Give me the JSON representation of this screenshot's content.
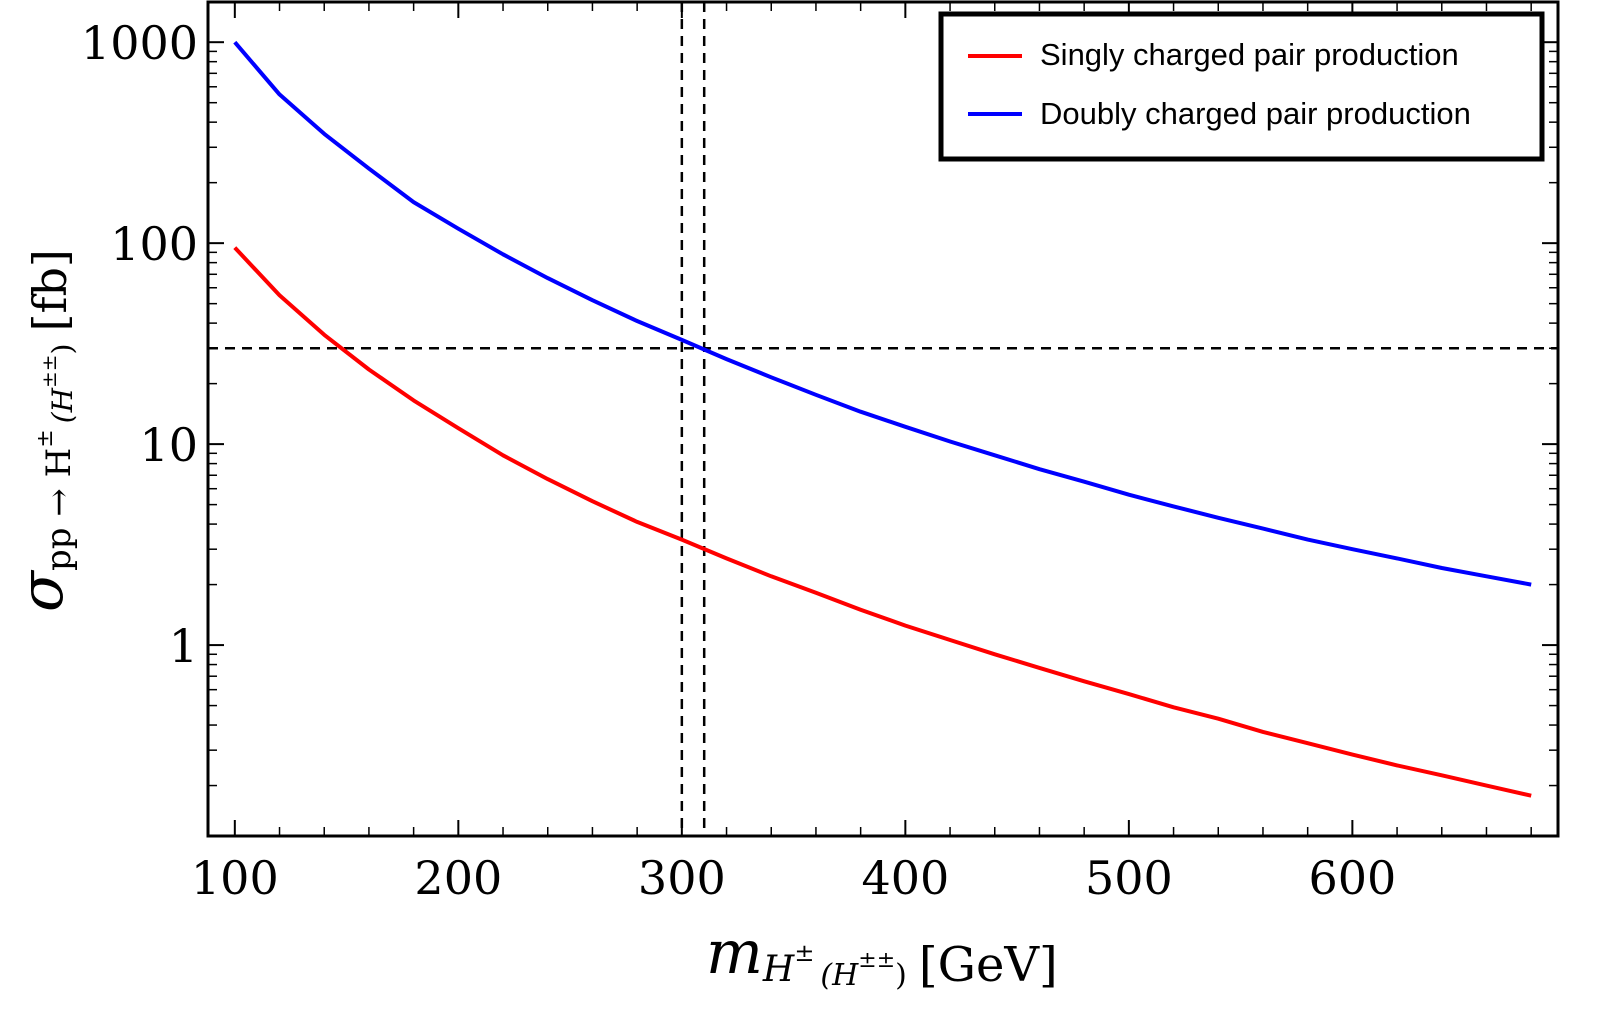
{
  "chart_data": {
    "type": "line",
    "title": "",
    "xlabel": {
      "symbol": "m",
      "sub1": "H",
      "sup1": "±",
      "sub2": "(H",
      "sup2": "±±",
      "sub3": ")",
      "unit": "[GeV]"
    },
    "ylabel": {
      "symbol": "σ",
      "sub1": "pp → H",
      "sup1": "±",
      "sub2": "(H",
      "sup2": "±±",
      "sub3": ")",
      "unit": "[fb]"
    },
    "xlim": [
      88,
      692
    ],
    "ylim_log10": [
      -0.95,
      3.2
    ],
    "yscale": "log",
    "x_ticks": [
      100,
      200,
      300,
      400,
      500,
      600
    ],
    "x_tick_labels": [
      "100",
      "200",
      "300",
      "400",
      "500",
      "600"
    ],
    "y_ticks": [
      1,
      10,
      100,
      1000
    ],
    "y_tick_labels": [
      "1",
      "10",
      "100",
      "1000"
    ],
    "legend_position": "top-right",
    "series": [
      {
        "name": "Singly charged pair production",
        "color": "#ff0000",
        "x": [
          100,
          120,
          140,
          160,
          180,
          200,
          220,
          240,
          260,
          280,
          300,
          320,
          340,
          360,
          380,
          400,
          420,
          440,
          460,
          480,
          500,
          520,
          540,
          560,
          580,
          600,
          620,
          640,
          660,
          680
        ],
        "y": [
          95,
          55,
          35,
          23.5,
          16.5,
          12,
          8.8,
          6.7,
          5.2,
          4.1,
          3.35,
          2.7,
          2.2,
          1.82,
          1.5,
          1.25,
          1.06,
          0.9,
          0.77,
          0.66,
          0.57,
          0.49,
          0.43,
          0.37,
          0.325,
          0.285,
          0.252,
          0.225,
          0.2,
          0.178
        ]
      },
      {
        "name": "Doubly charged pair production",
        "color": "#0000ff",
        "x": [
          100,
          120,
          140,
          160,
          180,
          200,
          220,
          240,
          260,
          280,
          300,
          320,
          340,
          360,
          380,
          400,
          420,
          440,
          460,
          480,
          500,
          520,
          540,
          560,
          580,
          600,
          620,
          640,
          660,
          680
        ],
        "y": [
          1000,
          550,
          350,
          235,
          160,
          118,
          88,
          67,
          52,
          41,
          33,
          26.5,
          21.5,
          17.6,
          14.5,
          12.2,
          10.3,
          8.8,
          7.5,
          6.5,
          5.6,
          4.9,
          4.3,
          3.8,
          3.35,
          3.0,
          2.7,
          2.42,
          2.2,
          2.0
        ]
      }
    ],
    "reference_lines": [
      {
        "axis": "x",
        "value": 300
      },
      {
        "axis": "x",
        "value": 310
      },
      {
        "axis": "y",
        "value": 30
      }
    ]
  }
}
